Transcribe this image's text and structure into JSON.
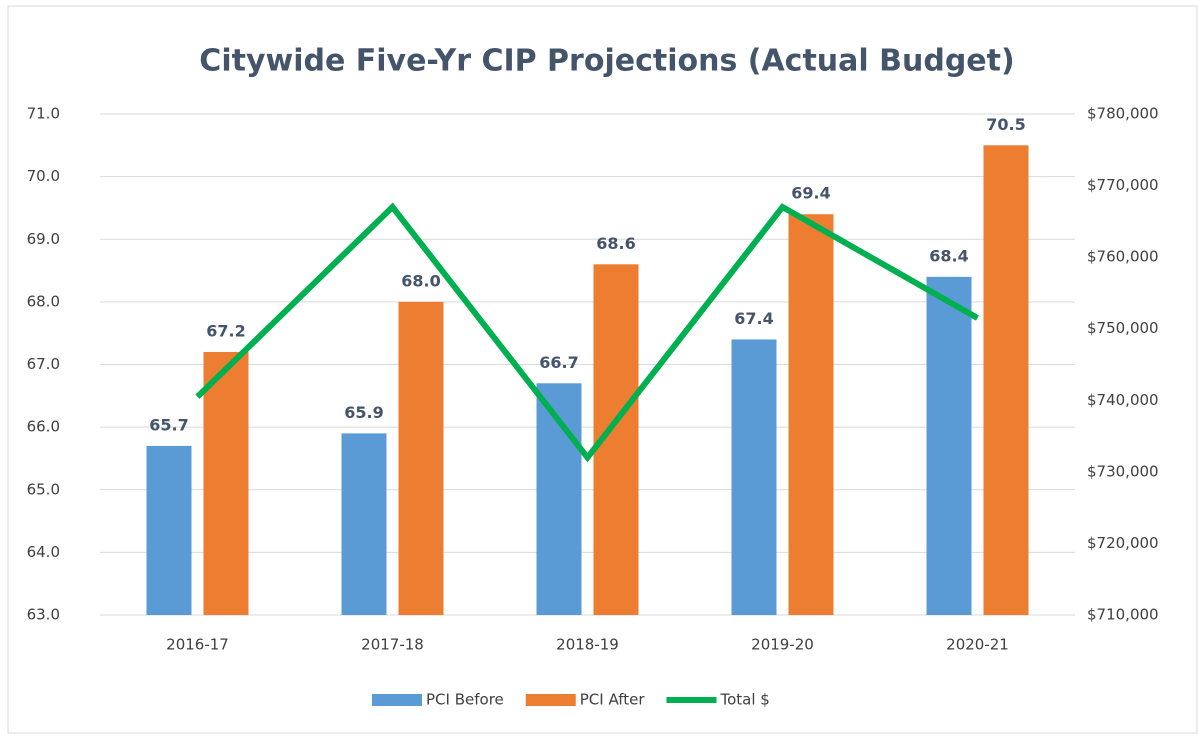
{
  "chart_data": {
    "type": "bar",
    "title": "Citywide Five-Yr CIP Projections  (Actual Budget)",
    "categories": [
      "2016-17",
      "2017-18",
      "2018-19",
      "2019-20",
      "2020-21"
    ],
    "series": [
      {
        "name": "PCI Before",
        "color": "#5b9bd5",
        "values": [
          65.7,
          65.9,
          66.7,
          67.4,
          68.4
        ],
        "value_labels": [
          "65.7",
          "65.9",
          "66.7",
          "67.4",
          "68.4"
        ]
      },
      {
        "name": "PCI After",
        "color": "#ed7d31",
        "values": [
          67.2,
          68.0,
          68.6,
          69.4,
          70.5
        ],
        "value_labels": [
          "67.2",
          "68.0",
          "68.6",
          "69.4",
          "70.5"
        ]
      },
      {
        "name": "Total $",
        "color": "#00b050",
        "type": "line",
        "axis": "y2",
        "values": [
          740500,
          767000,
          732000,
          767000,
          751500
        ]
      }
    ],
    "ylim": [
      63,
      71
    ],
    "yticks": [
      {
        "value": 63,
        "label": "63.0"
      },
      {
        "value": 64,
        "label": "64.0"
      },
      {
        "value": 65,
        "label": "65.0"
      },
      {
        "value": 66,
        "label": "66.0"
      },
      {
        "value": 67,
        "label": "67.0"
      },
      {
        "value": 68,
        "label": "68.0"
      },
      {
        "value": 69,
        "label": "69.0"
      },
      {
        "value": 70,
        "label": "70.0"
      },
      {
        "value": 71,
        "label": "71.0"
      }
    ],
    "y2lim": [
      710000,
      780000
    ],
    "y2ticks": [
      {
        "value": 710000,
        "label": "$710,000"
      },
      {
        "value": 720000,
        "label": "$720,000"
      },
      {
        "value": 730000,
        "label": "$730,000"
      },
      {
        "value": 740000,
        "label": "$740,000"
      },
      {
        "value": 750000,
        "label": "$750,000"
      },
      {
        "value": 760000,
        "label": "$760,000"
      },
      {
        "value": 770000,
        "label": "$770,000"
      },
      {
        "value": 780000,
        "label": "$780,000"
      }
    ],
    "grid": true,
    "legend": "bottom"
  }
}
